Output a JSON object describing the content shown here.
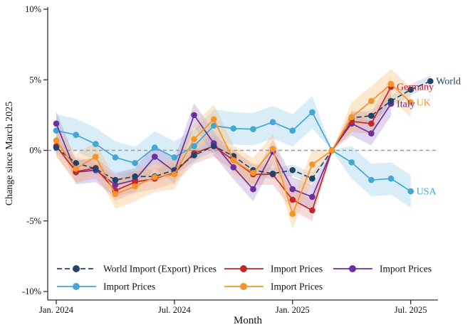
{
  "figure": {
    "background": "#ffffff",
    "axis_color": "#333333",
    "text_color": "#111111"
  },
  "chart_data": {
    "type": "line",
    "title": "",
    "xlabel": "Month",
    "ylabel": "Change since March 2025",
    "ylim": [
      -10,
      10
    ],
    "grid": false,
    "legend_position": "bottom-inside",
    "y_ticks": [
      {
        "value": 10,
        "label": "10%"
      },
      {
        "value": 5,
        "label": "5%"
      },
      {
        "value": 0,
        "label": "0%"
      },
      {
        "value": -5,
        "label": "-5%"
      },
      {
        "value": -10,
        "label": "-10%"
      }
    ],
    "x_ticks": [
      {
        "month_index": 0,
        "label": "Jan. 2024"
      },
      {
        "month_index": 6,
        "label": "Jul. 2024"
      },
      {
        "month_index": 12,
        "label": "Jan. 2025"
      },
      {
        "month_index": 18,
        "label": "Jul. 2025"
      }
    ],
    "categories": [
      "Jan 2024",
      "Feb 2024",
      "Mar 2024",
      "Apr 2024",
      "May 2024",
      "Jun 2024",
      "Jul 2024",
      "Aug 2024",
      "Sep 2024",
      "Oct 2024",
      "Nov 2024",
      "Dec 2024",
      "Jan 2025",
      "Feb 2025",
      "Mar 2025",
      "Apr 2025",
      "May 2025",
      "Jun 2025",
      "Jul 2025",
      "Aug 2025"
    ],
    "rebase_month": "Mar 2025",
    "rebase_index": 14,
    "zero_line": {
      "style": "dashed",
      "color": "#999999"
    },
    "series": [
      {
        "id": "world",
        "legend_label": "World Import (Export) Prices",
        "end_label": "World",
        "color": "#24436b",
        "line_style": "dashed",
        "band_color": "#92b4d6",
        "band_halfwidth": 0.4,
        "band_opacity": 0.3,
        "values": [
          0.2,
          -0.9,
          -1.3,
          -2.1,
          -1.85,
          -1.85,
          -1.4,
          -0.35,
          0.3,
          -0.4,
          -1.4,
          -1.65,
          -1.4,
          -2.0,
          0,
          2.3,
          2.45,
          3.5,
          4.3,
          4.9
        ]
      },
      {
        "id": "usa",
        "legend_label": "Import Prices",
        "end_label": "USA",
        "color": "#41a7d4",
        "line_style": "solid",
        "band_color": "#8ecbe8",
        "band_halfwidth": 1.15,
        "band_opacity": 0.35,
        "values": [
          1.4,
          1.1,
          0.45,
          -0.5,
          -0.9,
          0.2,
          -0.5,
          0.3,
          1.75,
          1.55,
          1.5,
          2.0,
          1.4,
          2.7,
          0,
          -0.85,
          -2.1,
          -2.0,
          -2.9,
          null
        ]
      },
      {
        "id": "italy",
        "legend_label": "Import Prices",
        "end_label": "Italy",
        "color": "#6b2f9f",
        "line_style": "solid",
        "band_color": "#ab8cce",
        "band_halfwidth": 0.85,
        "band_opacity": 0.35,
        "values": [
          1.9,
          -1.55,
          -1.4,
          -2.45,
          -2.1,
          -0.45,
          -1.5,
          2.5,
          0.5,
          -1.2,
          -2.75,
          -0.1,
          -2.75,
          -3.3,
          0,
          1.9,
          1.2,
          3.3,
          null,
          null
        ]
      },
      {
        "id": "germany",
        "legend_label": "Import Prices",
        "end_label": "Germany",
        "color": "#c4262b",
        "line_style": "solid",
        "band_color": "#e39493",
        "band_halfwidth": 0.75,
        "band_opacity": 0.32,
        "values": [
          0.3,
          -1.5,
          -1.25,
          -2.85,
          -2.25,
          -2.0,
          -1.6,
          -0.2,
          0.3,
          -0.7,
          -1.7,
          -1.7,
          -3.5,
          -4.25,
          0,
          2.05,
          1.9,
          4.5,
          null,
          null
        ]
      },
      {
        "id": "uk",
        "legend_label": "Import Prices",
        "end_label": "UK",
        "color": "#f79428",
        "line_style": "solid",
        "band_color": "#f8c488",
        "band_halfwidth": 1.05,
        "band_opacity": 0.4,
        "values": [
          0.7,
          -1.3,
          -0.45,
          -3.1,
          -2.55,
          -1.9,
          -1.7,
          0.8,
          2.2,
          -0.7,
          -1.6,
          0.1,
          -4.5,
          -1.0,
          0,
          2.35,
          3.5,
          4.7,
          3.4,
          null
        ]
      }
    ],
    "legend_rows": [
      [
        "world",
        "germany",
        "italy"
      ],
      [
        "usa",
        "uk"
      ]
    ]
  }
}
